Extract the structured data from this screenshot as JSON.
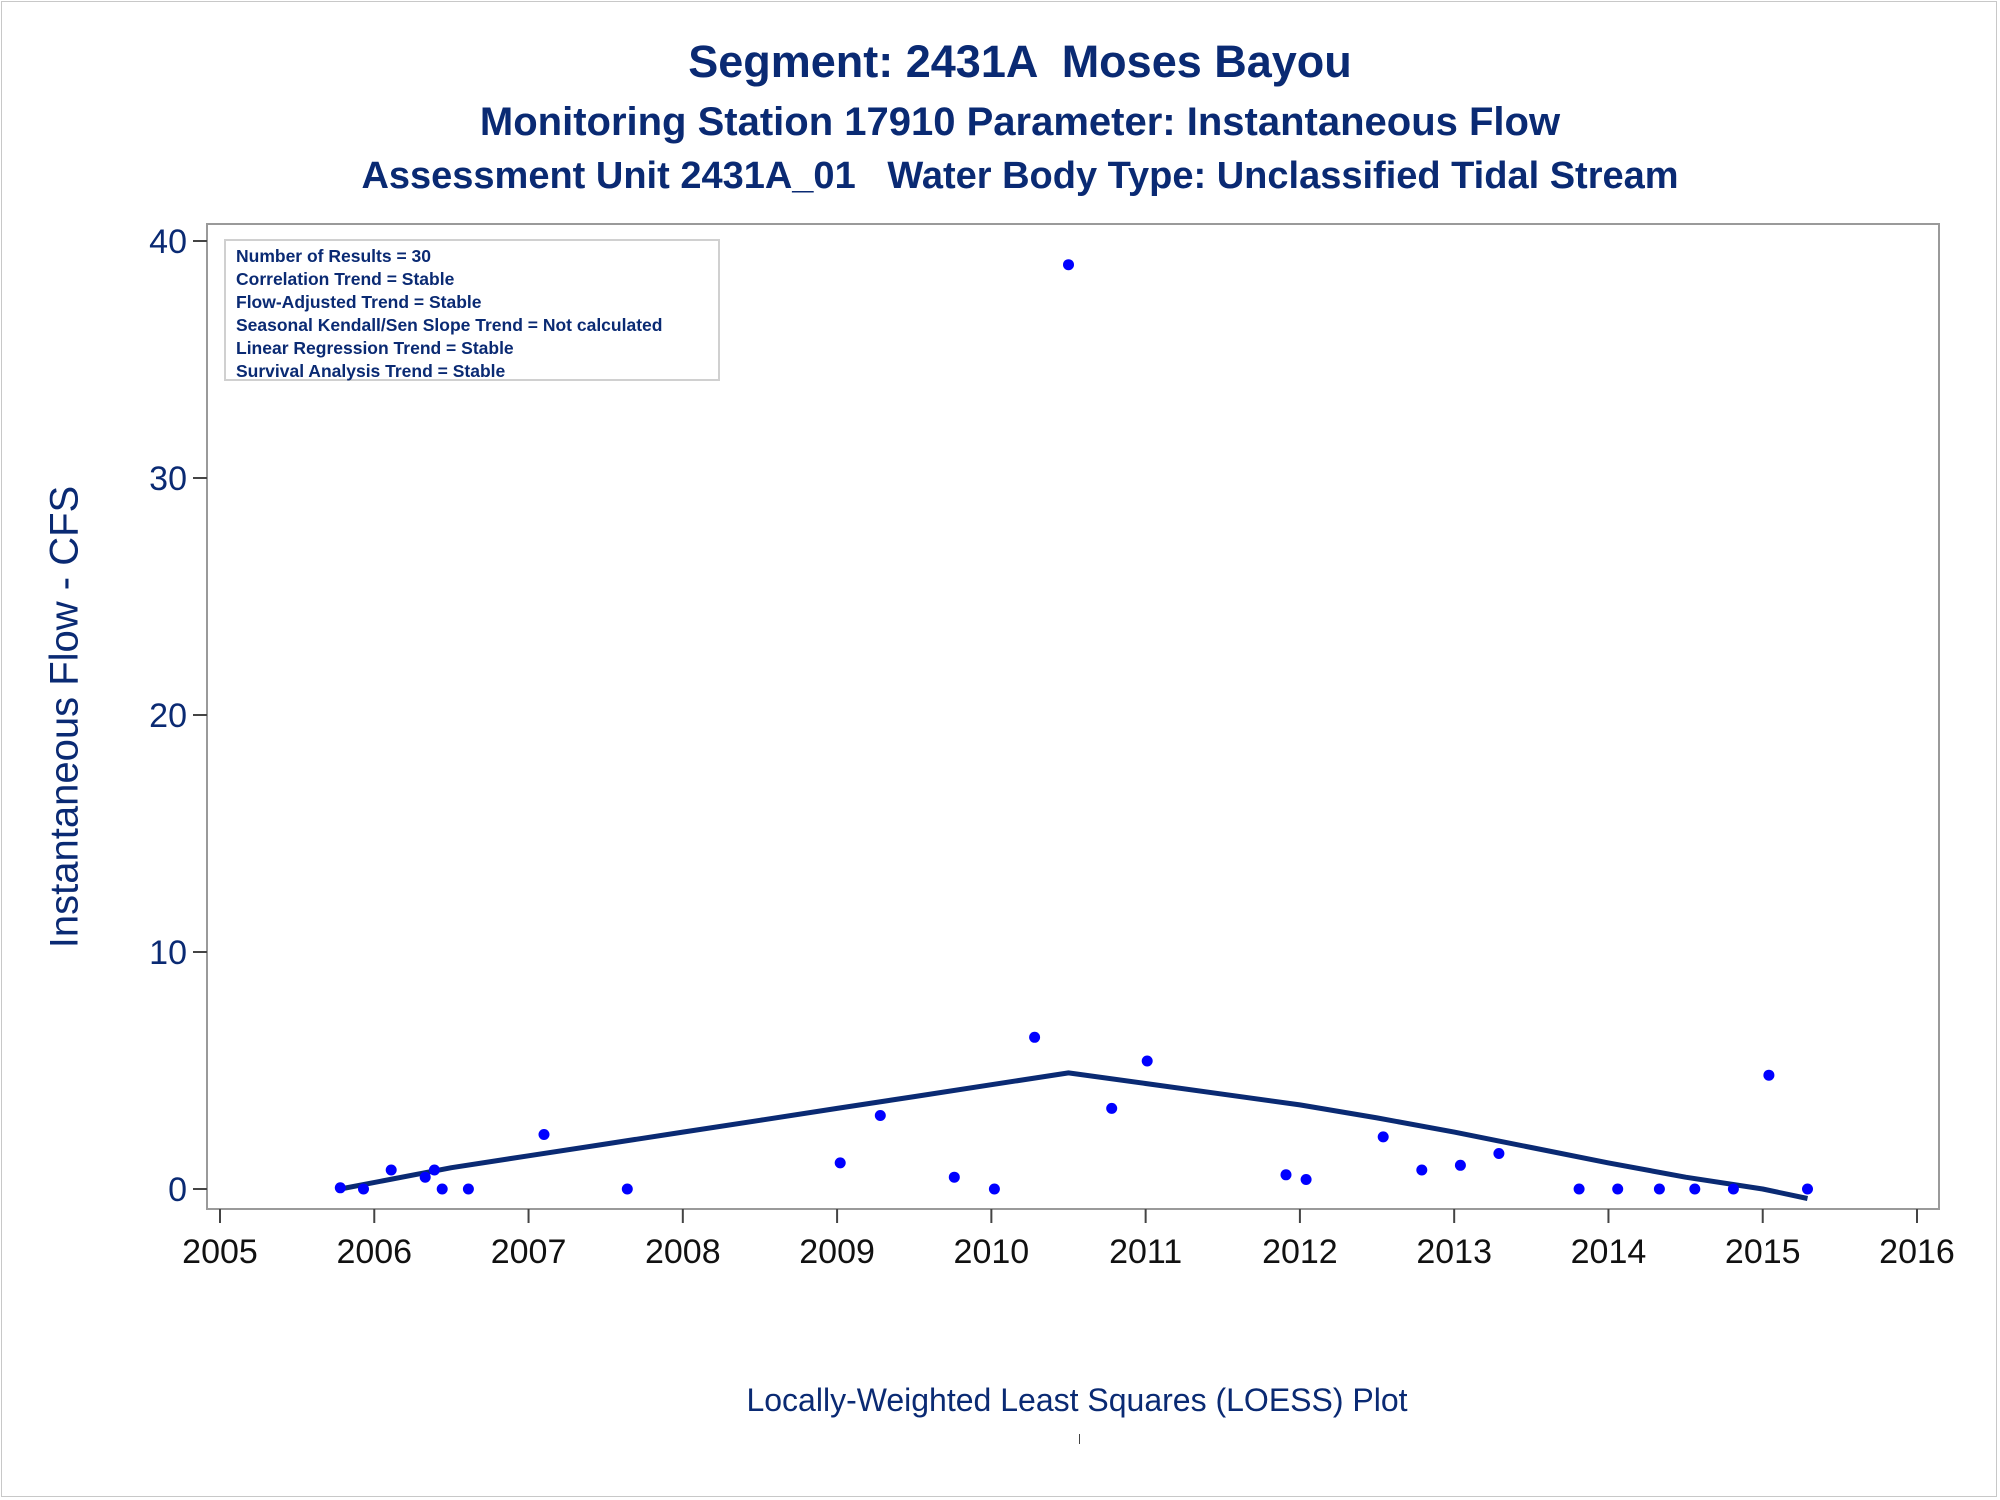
{
  "titles": {
    "line1": "Segment: 2431A  Moses Bayou",
    "line2": "Monitoring Station 17910 Parameter: Instantaneous Flow",
    "line3": "Assessment Unit 2431A_01   Water Body Type: Unclassified Tidal Stream"
  },
  "stats": [
    "Number of Results = 30",
    "Correlation Trend = Stable",
    "Flow-Adjusted Trend = Stable",
    "Seasonal Kendall/Sen Slope Trend = Not calculated",
    "Linear Regression Trend = Stable",
    "Survival Analysis Trend = Stable"
  ],
  "chart_data": {
    "type": "scatter",
    "title": "Segment: 2431A  Moses Bayou",
    "xlabel": "Locally-Weighted Least Squares (LOESS) Plot",
    "ylabel": "Instantaneous Flow - CFS",
    "xlim": [
      2005,
      2016
    ],
    "ylim": [
      0,
      40
    ],
    "x_ticks": [
      "2005",
      "2006",
      "2007",
      "2008",
      "2009",
      "2010",
      "2011",
      "2012",
      "2013",
      "2014",
      "2015",
      "2016"
    ],
    "y_ticks": [
      "0",
      "10",
      "20",
      "30",
      "40"
    ],
    "grid": false,
    "series": [
      {
        "type": "scatter",
        "color": "#0000ff",
        "points": [
          [
            2005.78,
            0.05
          ],
          [
            2005.93,
            0.0
          ],
          [
            2006.11,
            0.8
          ],
          [
            2006.33,
            0.5
          ],
          [
            2006.39,
            0.8
          ],
          [
            2006.44,
            0.0
          ],
          [
            2006.61,
            0.0
          ],
          [
            2007.1,
            2.3
          ],
          [
            2007.64,
            0.0
          ],
          [
            2009.02,
            1.1
          ],
          [
            2009.28,
            3.1
          ],
          [
            2009.76,
            0.5
          ],
          [
            2010.02,
            0.0
          ],
          [
            2010.28,
            6.4
          ],
          [
            2010.5,
            39.0
          ],
          [
            2010.78,
            3.4
          ],
          [
            2011.01,
            5.4
          ],
          [
            2011.91,
            0.6
          ],
          [
            2012.04,
            0.4
          ],
          [
            2012.54,
            2.2
          ],
          [
            2012.79,
            0.8
          ],
          [
            2013.04,
            1.0
          ],
          [
            2013.29,
            1.5
          ],
          [
            2013.81,
            0.0
          ],
          [
            2014.06,
            0.0
          ],
          [
            2014.33,
            0.0
          ],
          [
            2014.56,
            0.0
          ],
          [
            2014.81,
            0.0
          ],
          [
            2015.04,
            4.8
          ],
          [
            2015.29,
            0.0
          ]
        ]
      },
      {
        "type": "line",
        "color": "#0a2a73",
        "points": [
          [
            2005.78,
            0.0
          ],
          [
            2006.5,
            0.9
          ],
          [
            2007.0,
            1.4
          ],
          [
            2007.5,
            1.9
          ],
          [
            2008.0,
            2.4
          ],
          [
            2008.5,
            2.9
          ],
          [
            2009.0,
            3.4
          ],
          [
            2009.5,
            3.9
          ],
          [
            2010.0,
            4.4
          ],
          [
            2010.5,
            4.9
          ],
          [
            2011.0,
            4.45
          ],
          [
            2011.5,
            4.0
          ],
          [
            2012.0,
            3.55
          ],
          [
            2012.5,
            3.0
          ],
          [
            2013.0,
            2.4
          ],
          [
            2013.5,
            1.75
          ],
          [
            2014.0,
            1.1
          ],
          [
            2014.5,
            0.5
          ],
          [
            2015.0,
            0.0
          ],
          [
            2015.29,
            -0.4
          ]
        ]
      }
    ]
  }
}
